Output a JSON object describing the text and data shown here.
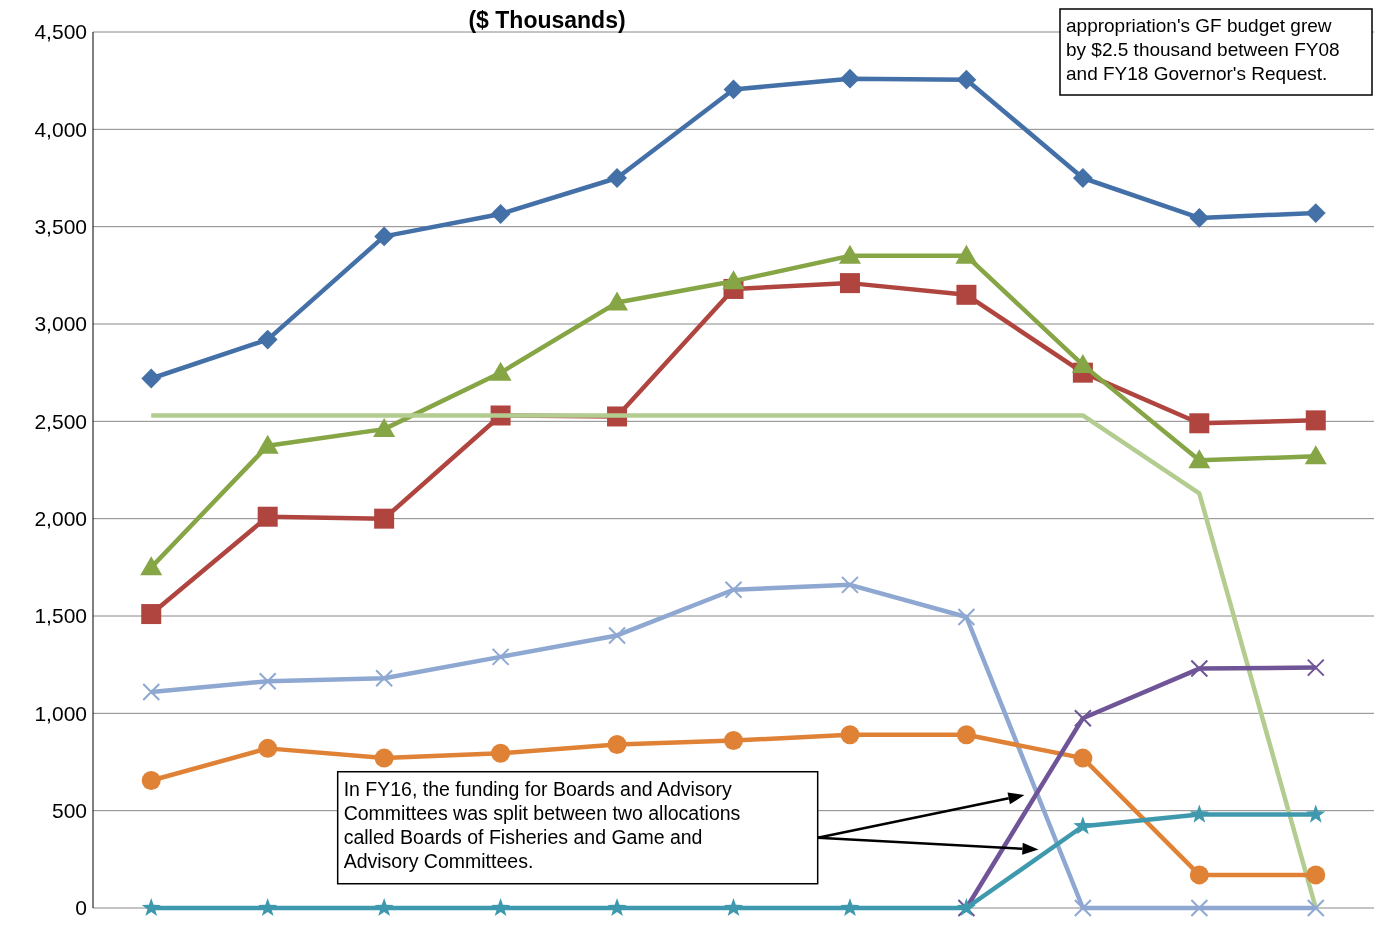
{
  "chart_data": {
    "type": "line",
    "title": "($ Thousands)",
    "categories": [
      null,
      null,
      null,
      null,
      null,
      null,
      null,
      null,
      null,
      null,
      null
    ],
    "series": [
      {
        "color": "#4470a8",
        "marker": "diamond",
        "values": [
          2720,
          2920,
          3450,
          3565,
          3750,
          4205,
          4260,
          4255,
          3750,
          3545,
          3570
        ]
      },
      {
        "color": "#b04540",
        "marker": "square",
        "values": [
          1510,
          2010,
          2000,
          2530,
          2525,
          3180,
          3210,
          3150,
          2750,
          2490,
          2505
        ]
      },
      {
        "color": "#86a545",
        "marker": "triangle",
        "values": [
          1750,
          2375,
          2460,
          2750,
          3110,
          3220,
          3350,
          3350,
          2790,
          2300,
          2320
        ]
      },
      {
        "color": "#b3cc8f",
        "marker": "none",
        "values": [
          2530,
          2530,
          2530,
          2530,
          2530,
          2530,
          2530,
          2530,
          2530,
          2130,
          0
        ]
      },
      {
        "color": "#8ea8d2",
        "marker": "cross",
        "values": [
          1110,
          1165,
          1180,
          1290,
          1400,
          1635,
          1660,
          1495,
          0,
          0,
          0
        ]
      },
      {
        "color": "#e08236",
        "marker": "circle",
        "values": [
          655,
          820,
          770,
          795,
          840,
          860,
          890,
          890,
          770,
          170,
          170
        ]
      },
      {
        "color": "#6f5597",
        "marker": "cross",
        "values": [
          null,
          null,
          null,
          null,
          null,
          null,
          null,
          0,
          975,
          1230,
          1235
        ]
      },
      {
        "color": "#3e98ae",
        "marker": "star",
        "values": [
          0,
          0,
          0,
          0,
          0,
          0,
          0,
          0,
          420,
          480,
          480
        ]
      }
    ],
    "ylim": [
      0,
      4500
    ],
    "yticks": [
      {
        "value": 0,
        "label": "0"
      },
      {
        "value": 500,
        "label": "500"
      },
      {
        "value": 1000,
        "label": "1,000"
      },
      {
        "value": 1500,
        "label": "1,500"
      },
      {
        "value": 2000,
        "label": "2,000"
      },
      {
        "value": 2500,
        "label": "2,500"
      },
      {
        "value": 3000,
        "label": "3,000"
      },
      {
        "value": 3500,
        "label": "3,500"
      },
      {
        "value": 4000,
        "label": "4,000"
      },
      {
        "value": 4500,
        "label": "4,500"
      }
    ],
    "grid": "y",
    "line_style": "solid",
    "annotations": [
      "appropriation's GF budget grew by $2.5 thousand between FY08 and FY18 Governor's Request.",
      "In FY16, the funding for Boards and Advisory Committees was split between two allocations called Boards of Fisheries and Game and Advisory Committees."
    ]
  }
}
